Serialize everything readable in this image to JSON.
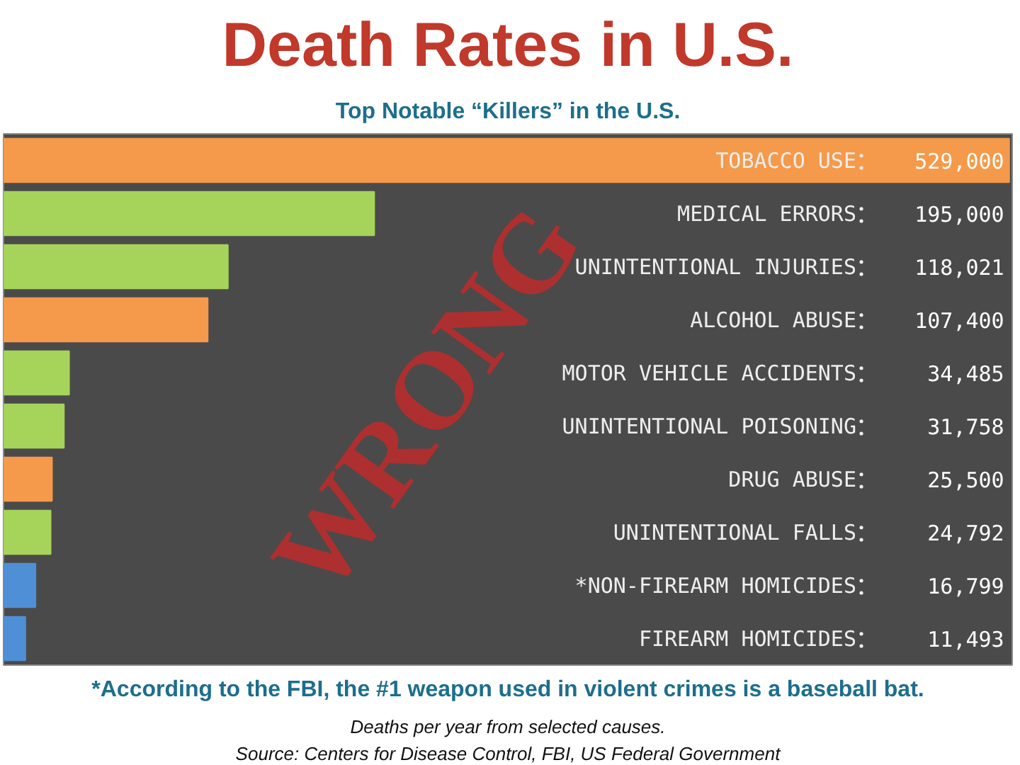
{
  "chart_data": {
    "type": "bar",
    "orientation": "horizontal",
    "title": "Death Rates in U.S.",
    "subtitle": "Top Notable “Killers” in the U.S.",
    "categories": [
      "TOBACCO USE",
      "MEDICAL ERRORS",
      "UNINTENTIONAL INJURIES",
      "ALCOHOL ABUSE",
      "MOTOR VEHICLE ACCIDENTS",
      "UNINTENTIONAL POISONING",
      "DRUG ABUSE",
      "UNINTENTIONAL FALLS",
      "*NON-FIREARM HOMICIDES",
      "FIREARM HOMICIDES"
    ],
    "values": [
      529000,
      195000,
      118021,
      107400,
      34485,
      31758,
      25500,
      24792,
      16799,
      11493
    ],
    "value_labels": [
      "529,000",
      "195,000",
      "118,021",
      "107,400",
      "34,485",
      "31,758",
      "25,500",
      "24,792",
      "16,799",
      "11,493"
    ],
    "colors": [
      "#f59a4a",
      "#a6d35a",
      "#a6d35a",
      "#f59a4a",
      "#a6d35a",
      "#a6d35a",
      "#f59a4a",
      "#a6d35a",
      "#4f8fd6",
      "#4f8fd6"
    ],
    "annotations": [
      "WRONG",
      "*According to the FBI, the #1 weapon used in violent crimes is a baseball bat.",
      "Deaths per year from selected causes.",
      "Source: Centers for Disease Control, FBI, US Federal Government"
    ]
  }
}
